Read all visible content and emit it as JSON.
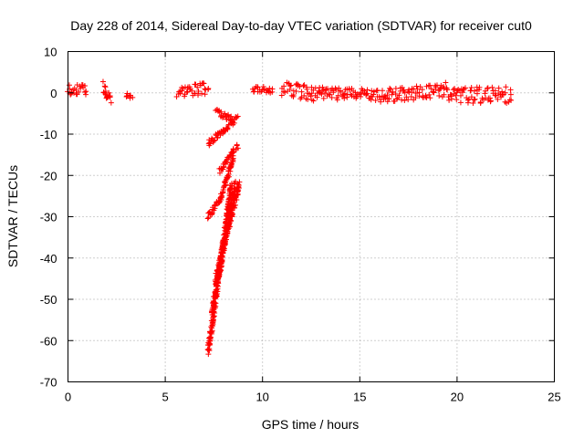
{
  "chart_data": {
    "type": "scatter",
    "title": "Day 228 of 2014, Sidereal Day-to-day VTEC variation (SDTVAR) for receiver cut0",
    "xlabel": "GPS time / hours",
    "ylabel": "SDTVAR / TECUs",
    "xlim": [
      0,
      25
    ],
    "ylim": [
      -70,
      10
    ],
    "xticks": [
      0,
      5,
      10,
      15,
      20,
      25
    ],
    "yticks": [
      10,
      0,
      -10,
      -20,
      -30,
      -40,
      -50,
      -60,
      -70
    ],
    "grid": true,
    "marker": "+",
    "series": [
      {
        "name": "SDTVAR",
        "color": "#ff0000",
        "segments": [
          {
            "x": [
              0.0,
              0.95
            ],
            "y": [
              0.8,
              0.8
            ],
            "spread": 2.5
          },
          {
            "x": [
              1.8,
              2.2
            ],
            "y": [
              1.5,
              -1.5
            ],
            "spread": 3.0
          },
          {
            "x": [
              3.0,
              3.3
            ],
            "y": [
              -0.5,
              -1.0
            ],
            "spread": 1.5
          },
          {
            "x": [
              5.6,
              7.2
            ],
            "y": [
              0.5,
              1.0
            ],
            "spread": 3.0
          },
          {
            "x": [
              7.2,
              8.7
            ],
            "y": [
              -12.5,
              -6.0
            ],
            "spread": 1.5
          },
          {
            "x": [
              7.6,
              8.5
            ],
            "y": [
              -4.5,
              -6.5
            ],
            "spread": 1.5
          },
          {
            "x": [
              7.2,
              7.8
            ],
            "y": [
              -30.0,
              -26.0
            ],
            "spread": 1.2
          },
          {
            "x": [
              7.8,
              8.5
            ],
            "y": [
              -26.0,
              -16.0
            ],
            "spread": 1.2
          },
          {
            "x": [
              7.8,
              8.7
            ],
            "y": [
              -19.0,
              -13.0
            ],
            "spread": 1.2
          },
          {
            "x": [
              7.2,
              8.4
            ],
            "y": [
              -63.0,
              -22.0
            ],
            "spread": 1.5
          },
          {
            "x": [
              7.4,
              8.6
            ],
            "y": [
              -53.0,
              -22.0
            ],
            "spread": 1.5
          },
          {
            "x": [
              7.6,
              8.8
            ],
            "y": [
              -45.0,
              -22.0
            ],
            "spread": 1.5
          },
          {
            "x": [
              9.5,
              10.5
            ],
            "y": [
              1.0,
              0.5
            ],
            "spread": 1.8
          },
          {
            "x": [
              11.0,
              13.0
            ],
            "y": [
              1.0,
              -0.5
            ],
            "spread": 3.5
          },
          {
            "x": [
              13.0,
              16.5
            ],
            "y": [
              0.0,
              -0.8
            ],
            "spread": 3.0
          },
          {
            "x": [
              16.5,
              19.5
            ],
            "y": [
              -0.5,
              0.8
            ],
            "spread": 3.5
          },
          {
            "x": [
              19.5,
              22.8
            ],
            "y": [
              -0.5,
              -0.5
            ],
            "spread": 4.0
          }
        ]
      }
    ]
  }
}
